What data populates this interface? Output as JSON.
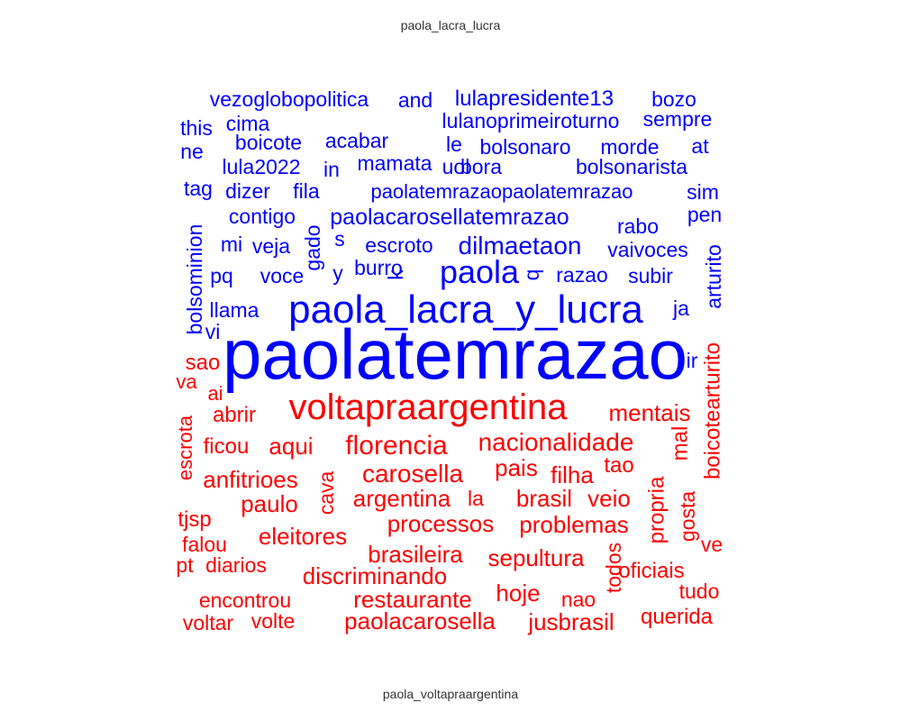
{
  "chart_data": {
    "type": "comparison_wordcloud",
    "groups": [
      {
        "name": "paola_lacra_lucra",
        "color": "#0000FF",
        "words": [
          "paolatemrazao",
          "paola_lacra_y_lucra",
          "paola",
          "dilmaetaon",
          "paolacarosellatemrazao",
          "paolatemrazaopaolatemrazao",
          "lulapresidente13",
          "lulanoprimeiroturno",
          "vezoglobopolitica",
          "bolsonaro",
          "bolsonarista",
          "morde",
          "mamata",
          "bora",
          "uol",
          "acabar",
          "boicote",
          "lula2022",
          "cima",
          "this",
          "ne",
          "tag",
          "dizer",
          "fila",
          "contigo",
          "escroto",
          "veja",
          "mi",
          "voce",
          "pq",
          "burro",
          "razao",
          "subir",
          "vaivoces",
          "rabo",
          "pen",
          "sim",
          "at",
          "sempre",
          "bozo",
          "and",
          "le",
          "in",
          "gado",
          "s",
          "k",
          "y",
          "q",
          "bolsominion",
          "arturito",
          "llama",
          "vi",
          "ja",
          "ir"
        ]
      },
      {
        "name": "paola_voltapraargentina",
        "color": "#FF0000",
        "words": [
          "voltapraargentina",
          "florencia",
          "carosella",
          "nacionalidade",
          "mentais",
          "aqui",
          "ficou",
          "abrir",
          "sao",
          "ai",
          "va",
          "escrota",
          "anfitrioes",
          "paulo",
          "argentina",
          "pais",
          "filha",
          "tao",
          "processos",
          "problemas",
          "brasil",
          "veio",
          "la",
          "cava",
          "eleitores",
          "tjsp",
          "falou",
          "pt",
          "diarios",
          "brasileira",
          "sepultura",
          "discriminando",
          "restaurante",
          "hoje",
          "nao",
          "oficiais",
          "tudo",
          "encontrou",
          "voltar",
          "volte",
          "paolacarosella",
          "jusbrasil",
          "querida",
          "todos",
          "propria",
          "gosta",
          "ve",
          "mal",
          "boicotearturito"
        ]
      }
    ]
  }
}
